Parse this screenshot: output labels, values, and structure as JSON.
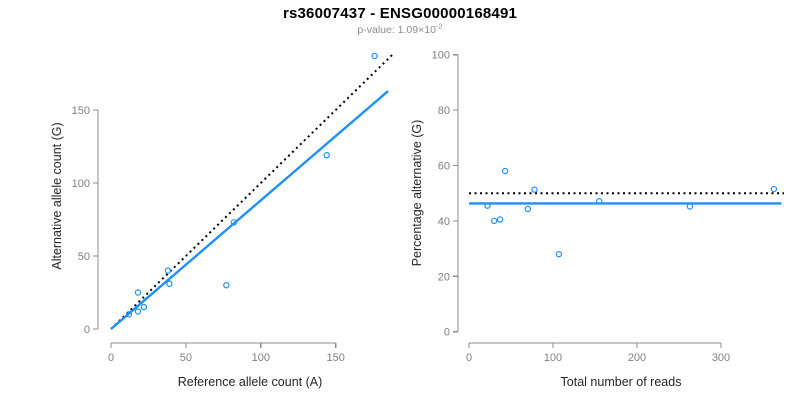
{
  "header": {
    "title": "rs36007437 - ENSG00000168491",
    "subtitle_prefix": "p-value: 1.09×10",
    "subtitle_exponent": "-2"
  },
  "colors": {
    "accent_blue": "#1E90FF",
    "dotted_black": "#000000",
    "axis_gray": "#8c8c8c",
    "tick_label_gray": "#808080",
    "axis_title_dark": "#262626"
  },
  "chart_data": [
    {
      "type": "scatter",
      "id": "allele-counts",
      "xlabel": "Reference allele count (A)",
      "ylabel": "Alternative allele count (G)",
      "xticks": [
        0,
        50,
        100,
        150
      ],
      "yticks": [
        0,
        50,
        100,
        150
      ],
      "xlim": [
        0,
        188
      ],
      "ylim": [
        0,
        190
      ],
      "grid": false,
      "legend": "none",
      "points": [
        {
          "x": 12,
          "y": 10
        },
        {
          "x": 18,
          "y": 12
        },
        {
          "x": 22,
          "y": 15
        },
        {
          "x": 18,
          "y": 25
        },
        {
          "x": 39,
          "y": 31
        },
        {
          "x": 38,
          "y": 40
        },
        {
          "x": 77,
          "y": 30
        },
        {
          "x": 82,
          "y": 73
        },
        {
          "x": 144,
          "y": 119
        },
        {
          "x": 176,
          "y": 187
        }
      ],
      "lines": [
        {
          "name": "identity-line-1to1",
          "style": "dotted",
          "color_key": "dotted_black",
          "x1": 0,
          "y1": 0,
          "x2": 188,
          "y2": 188
        },
        {
          "name": "fitted-line",
          "style": "solid",
          "color_key": "accent_blue",
          "x1": 0,
          "y1": 0,
          "x2": 185,
          "y2": 163
        }
      ]
    },
    {
      "type": "scatter",
      "id": "percentage-alternative",
      "xlabel": "Total number of reads",
      "ylabel": "Percentage alternative (G)",
      "xticks": [
        0,
        100,
        200,
        300
      ],
      "yticks": [
        0,
        20,
        40,
        60,
        80,
        100
      ],
      "xlim": [
        0,
        380
      ],
      "ylim": [
        0,
        100
      ],
      "grid": false,
      "legend": "none",
      "points": [
        {
          "x": 22,
          "y": 45.5
        },
        {
          "x": 30,
          "y": 40.0
        },
        {
          "x": 37,
          "y": 40.5
        },
        {
          "x": 43,
          "y": 58.0
        },
        {
          "x": 70,
          "y": 44.3
        },
        {
          "x": 78,
          "y": 51.3
        },
        {
          "x": 107,
          "y": 28.0
        },
        {
          "x": 155,
          "y": 47.1
        },
        {
          "x": 263,
          "y": 45.2
        },
        {
          "x": 363,
          "y": 51.5
        }
      ],
      "lines": [
        {
          "name": "expected-50-percent-line",
          "style": "dotted",
          "color_key": "dotted_black",
          "x1": 0,
          "y1": 50,
          "x2": 375,
          "y2": 50
        },
        {
          "name": "fitted-line",
          "style": "solid",
          "color_key": "accent_blue",
          "x1": 0,
          "y1": 46.3,
          "x2": 372,
          "y2": 46.3
        }
      ]
    }
  ]
}
